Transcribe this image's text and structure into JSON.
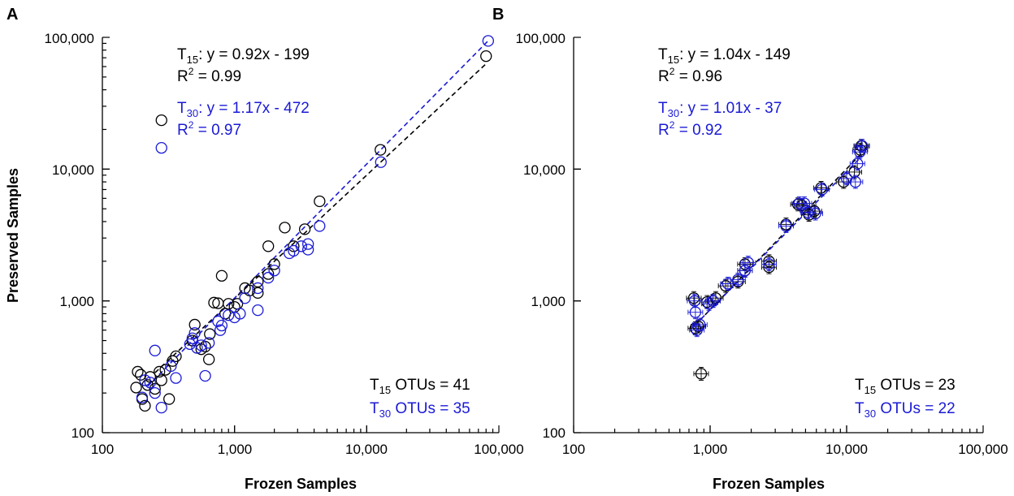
{
  "colors": {
    "t15": "#000000",
    "t30": "#1a1ad6"
  },
  "chart_data": [
    {
      "panel": "A",
      "type": "scatter",
      "xscale": "log",
      "yscale": "log",
      "xlim": [
        100,
        100000
      ],
      "ylim": [
        100,
        100000
      ],
      "xlabel": "Frozen Samples",
      "ylabel": "Preserved Samples",
      "xticks": [
        "100",
        "1,000",
        "10,000",
        "100,000"
      ],
      "yticks": [
        "100",
        "1,000",
        "10,000",
        "100,000"
      ],
      "grid": false,
      "annotations": {
        "t15_eq_prefix": "T",
        "t15_eq_sub": "15",
        "t15_eq_rest": ": y = 0.92x - 199",
        "t15_r2_prefix": "R",
        "t15_r2_sup": "2",
        "t15_r2_rest": " = 0.99",
        "t30_eq_prefix": "T",
        "t30_eq_sub": "30",
        "t30_eq_rest": ": y = 1.17x - 472",
        "t30_r2_prefix": "R",
        "t30_r2_sup": "2",
        "t30_r2_rest": " = 0.97",
        "t15_otu_prefix": "T",
        "t15_otu_sub": "15",
        "t15_otu_rest": " OTUs = 41",
        "t30_otu_prefix": "T",
        "t30_otu_sub": "30",
        "t30_otu_rest": " OTUs = 35"
      },
      "series": [
        {
          "color_key": "t15",
          "fit": [
            [
              250,
              285
            ],
            [
              80000,
              63000
            ]
          ],
          "points": [
            [
              280,
              23500
            ],
            [
              80000,
              72000
            ],
            [
              12700,
              14000
            ],
            [
              4400,
              5700
            ],
            [
              3400,
              3500
            ],
            [
              2400,
              3600
            ],
            [
              1800,
              2600
            ],
            [
              1800,
              1600
            ],
            [
              1500,
              1400
            ],
            [
              1200,
              1250
            ],
            [
              1000,
              900
            ],
            [
              800,
              1550
            ],
            [
              750,
              960
            ],
            [
              700,
              970
            ],
            [
              650,
              560
            ],
            [
              640,
              360
            ],
            [
              600,
              450
            ],
            [
              560,
              430
            ],
            [
              500,
              660
            ],
            [
              180,
              220
            ],
            [
              185,
              290
            ],
            [
              195,
              275
            ],
            [
              200,
              180
            ],
            [
              210,
              160
            ],
            [
              220,
              230
            ],
            [
              250,
              215
            ],
            [
              270,
              290
            ],
            [
              300,
              300
            ],
            [
              320,
              180
            ],
            [
              340,
              350
            ],
            [
              280,
              250
            ],
            [
              230,
              265
            ],
            [
              480,
              500
            ],
            [
              850,
              800
            ],
            [
              1300,
              1200
            ],
            [
              900,
              950
            ],
            [
              1500,
              1150
            ],
            [
              2000,
              1900
            ],
            [
              2800,
              2600
            ],
            [
              1050,
              950
            ],
            [
              360,
              380
            ]
          ]
        },
        {
          "color_key": "t30",
          "fit": [
            [
              220,
              225
            ],
            [
              82000,
              93000
            ]
          ],
          "points": [
            [
              280,
              14500
            ],
            [
              83000,
              94000
            ],
            [
              12800,
              11300
            ],
            [
              4400,
              3700
            ],
            [
              3600,
              2700
            ],
            [
              3600,
              2450
            ],
            [
              2800,
              2400
            ],
            [
              2600,
              2300
            ],
            [
              1800,
              1500
            ],
            [
              1500,
              1250
            ],
            [
              1500,
              850
            ],
            [
              1200,
              1050
            ],
            [
              1000,
              750
            ],
            [
              800,
              650
            ],
            [
              780,
              600
            ],
            [
              750,
              700
            ],
            [
              640,
              480
            ],
            [
              600,
              270
            ],
            [
              560,
              460
            ],
            [
              500,
              570
            ],
            [
              480,
              520
            ],
            [
              460,
              470
            ],
            [
              330,
              320
            ],
            [
              360,
              260
            ],
            [
              280,
              155
            ],
            [
              250,
              420
            ],
            [
              250,
              200
            ],
            [
              200,
              185
            ],
            [
              230,
              240
            ],
            [
              210,
              250
            ],
            [
              2000,
              1700
            ],
            [
              1100,
              800
            ],
            [
              900,
              780
            ],
            [
              3200,
              2600
            ],
            [
              520,
              440
            ]
          ]
        }
      ]
    },
    {
      "panel": "B",
      "type": "scatter",
      "xscale": "log",
      "yscale": "log",
      "xlim": [
        100,
        100000
      ],
      "ylim": [
        100,
        100000
      ],
      "xlabel": "Frozen Samples",
      "xticks": [
        "100",
        "1,000",
        "10,000",
        "100,000"
      ],
      "yticks": [
        "100",
        "1,000",
        "10,000",
        "100,000"
      ],
      "grid": false,
      "annotations": {
        "t15_eq_prefix": "T",
        "t15_eq_sub": "15",
        "t15_eq_rest": ": y = 1.04x - 149",
        "t15_r2_prefix": "R",
        "t15_r2_sup": "2",
        "t15_r2_rest": " = 0.96",
        "t30_eq_prefix": "T",
        "t30_eq_sub": "30",
        "t30_eq_rest": ": y = 1.01x - 37",
        "t30_r2_prefix": "R",
        "t30_r2_sup": "2",
        "t30_r2_rest": " = 0.92",
        "t15_otu_prefix": "T",
        "t15_otu_sub": "15",
        "t15_otu_rest": " OTUs = 23",
        "t30_otu_prefix": "T",
        "t30_otu_sub": "30",
        "t30_otu_rest": " OTUs = 22"
      },
      "series": [
        {
          "color_key": "t15",
          "fit": [
            [
              760,
              640
            ],
            [
              13000,
              13300
            ]
          ],
          "points": [
            [
              860,
              280
            ],
            [
              780,
              620
            ],
            [
              820,
              640
            ],
            [
              760,
              1050
            ],
            [
              950,
              980
            ],
            [
              1050,
              1000
            ],
            [
              1100,
              1050
            ],
            [
              1300,
              1300
            ],
            [
              1600,
              1400
            ],
            [
              1800,
              1900
            ],
            [
              1800,
              1700
            ],
            [
              2700,
              1800
            ],
            [
              2700,
              2000
            ],
            [
              3600,
              3800
            ],
            [
              4400,
              5400
            ],
            [
              4700,
              5300
            ],
            [
              5300,
              4500
            ],
            [
              5800,
              4800
            ],
            [
              6500,
              7200
            ],
            [
              9500,
              8000
            ],
            [
              11400,
              9500
            ],
            [
              12600,
              14000
            ],
            [
              12800,
              15000
            ]
          ]
        },
        {
          "color_key": "t30",
          "fit": [
            [
              780,
              660
            ],
            [
              13000,
              12600
            ]
          ],
          "points": [
            [
              780,
              820
            ],
            [
              800,
              600
            ],
            [
              840,
              660
            ],
            [
              770,
              1000
            ],
            [
              980,
              950
            ],
            [
              1050,
              1000
            ],
            [
              1350,
              1350
            ],
            [
              1600,
              1450
            ],
            [
              1800,
              1700
            ],
            [
              1900,
              1950
            ],
            [
              2700,
              1900
            ],
            [
              3600,
              3700
            ],
            [
              4500,
              5500
            ],
            [
              4900,
              5500
            ],
            [
              5200,
              4700
            ],
            [
              5900,
              4600
            ],
            [
              6600,
              7000
            ],
            [
              10000,
              8500
            ],
            [
              11600,
              8000
            ],
            [
              12500,
              13500
            ],
            [
              13000,
              15000
            ],
            [
              12000,
              11000
            ]
          ]
        }
      ]
    }
  ]
}
